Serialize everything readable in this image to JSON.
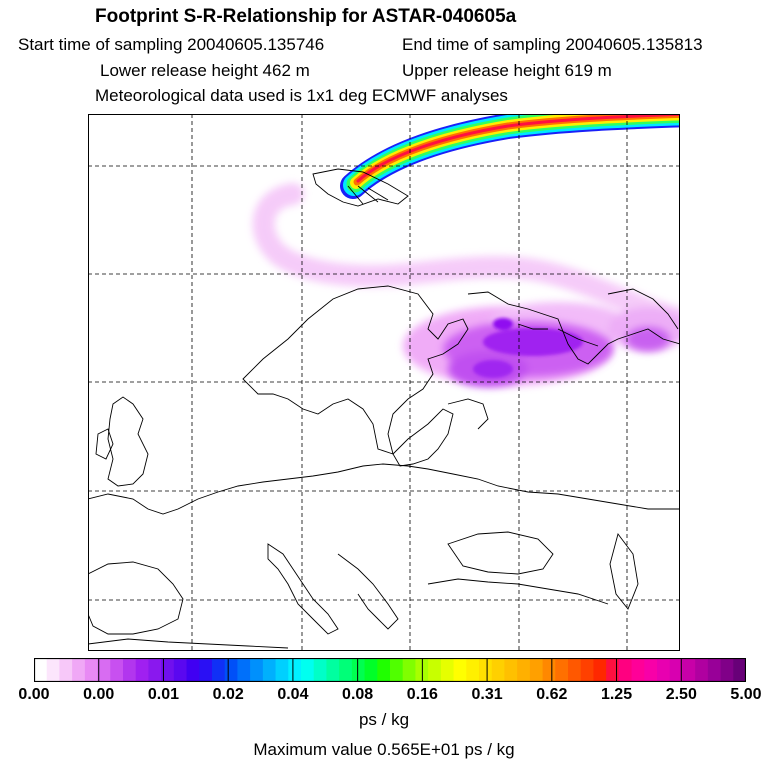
{
  "header": {
    "title": "Footprint S-R-Relationship for ASTAR-040605a",
    "start_time": "Start time of sampling 20040605.135746",
    "end_time": "End time of sampling 20040605.135813",
    "lower_height": "Lower release height  462 m",
    "upper_height": "Upper release height  619 m",
    "met_data": "Meteorological data used is 1x1 deg ECMWF analyses"
  },
  "colorbar": {
    "labels": [
      "0.00",
      "0.00",
      "0.01",
      "0.02",
      "0.04",
      "0.08",
      "0.16",
      "0.31",
      "0.62",
      "1.25",
      "2.50",
      "5.00"
    ],
    "colors": [
      "#ffffff",
      "#fce6fc",
      "#f7c8f9",
      "#f0a8f6",
      "#e88af4",
      "#d86cf2",
      "#c850f0",
      "#b236ee",
      "#a020f0",
      "#8a18ee",
      "#7010ee",
      "#5a08f0",
      "#4000f2",
      "#2a10f4",
      "#1030f6",
      "#0050f8",
      "#0070fa",
      "#0090fc",
      "#00b0fd",
      "#00d0fe",
      "#00f0ff",
      "#00fff0",
      "#00ffc8",
      "#00ffa0",
      "#00ff78",
      "#00ff50",
      "#00ff28",
      "#20ff00",
      "#50ff00",
      "#80ff00",
      "#a8ff00",
      "#c8ff00",
      "#e6ff00",
      "#ffff00",
      "#fff000",
      "#ffe000",
      "#ffd000",
      "#ffc000",
      "#ffb000",
      "#ffa000",
      "#ff8800",
      "#ff7000",
      "#ff5800",
      "#ff4000",
      "#ff2800",
      "#ff1040",
      "#ff0080",
      "#ff0098",
      "#f800a8",
      "#e800b0",
      "#d800b0",
      "#c800a8",
      "#b000a0",
      "#980098",
      "#800088",
      "#680078"
    ],
    "unit": "ps / kg",
    "max_value": "Maximum value  0.565E+01 ps / kg"
  },
  "map": {
    "plume_colors": {
      "low": "#f2b6f8",
      "mid": "#d070f0",
      "high": "#9a10f0",
      "band_blue": "#1020f8",
      "band_cyan": "#00e8ff",
      "band_green": "#00ff60",
      "band_yellow": "#ffee00",
      "band_orange": "#ff6000",
      "band_red": "#ff1030"
    }
  }
}
